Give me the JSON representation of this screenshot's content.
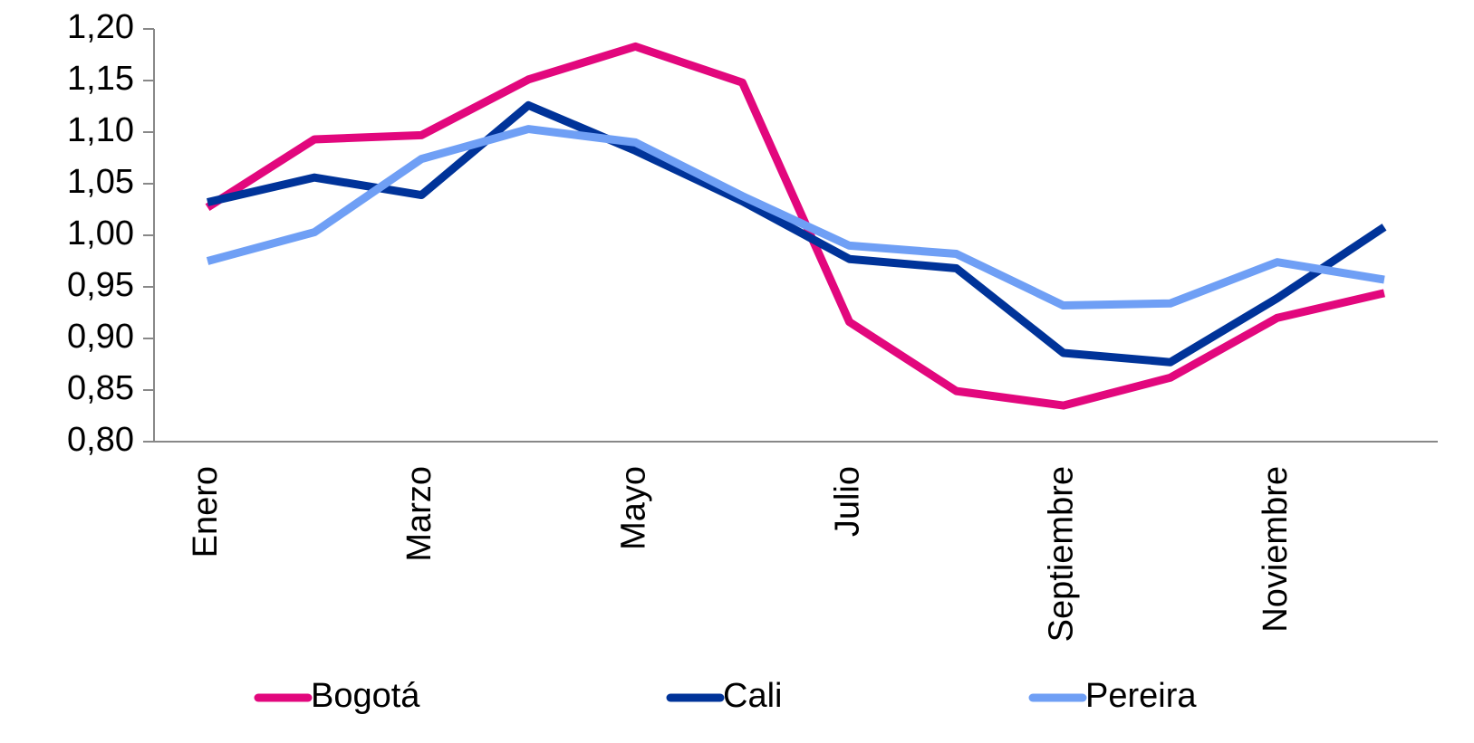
{
  "chart_data": {
    "type": "line",
    "categories": [
      "Enero",
      null,
      "Marzo",
      null,
      "Mayo",
      null,
      "Julio",
      null,
      "Septiembre",
      null,
      "Noviembre",
      null
    ],
    "series": [
      {
        "name": "Bogotá",
        "color": "#e2077d",
        "values": [
          1.027,
          1.093,
          1.097,
          1.151,
          1.183,
          1.148,
          0.916,
          0.849,
          0.835,
          0.862,
          0.92,
          0.944
        ]
      },
      {
        "name": "Cali",
        "color": "#003399",
        "values": [
          1.032,
          1.056,
          1.039,
          1.126,
          1.082,
          1.033,
          0.977,
          0.968,
          0.886,
          0.877,
          0.939,
          1.008
        ]
      },
      {
        "name": "Pereira",
        "color": "#6f9ff5",
        "values": [
          0.975,
          1.003,
          1.074,
          1.103,
          1.09,
          1.038,
          0.99,
          0.982,
          0.932,
          0.934,
          0.974,
          0.957
        ]
      }
    ],
    "ylim": [
      0.8,
      1.2
    ],
    "yticks": [
      {
        "value": 0.8,
        "label": "0,80"
      },
      {
        "value": 0.85,
        "label": "0,85"
      },
      {
        "value": 0.9,
        "label": "0,90"
      },
      {
        "value": 0.95,
        "label": "0,95"
      },
      {
        "value": 1.0,
        "label": "1,00"
      },
      {
        "value": 1.05,
        "label": "1,05"
      },
      {
        "value": 1.1,
        "label": "1,10"
      },
      {
        "value": 1.15,
        "label": "1,15"
      },
      {
        "value": 1.2,
        "label": "1,20"
      }
    ],
    "legend": "bottom"
  }
}
